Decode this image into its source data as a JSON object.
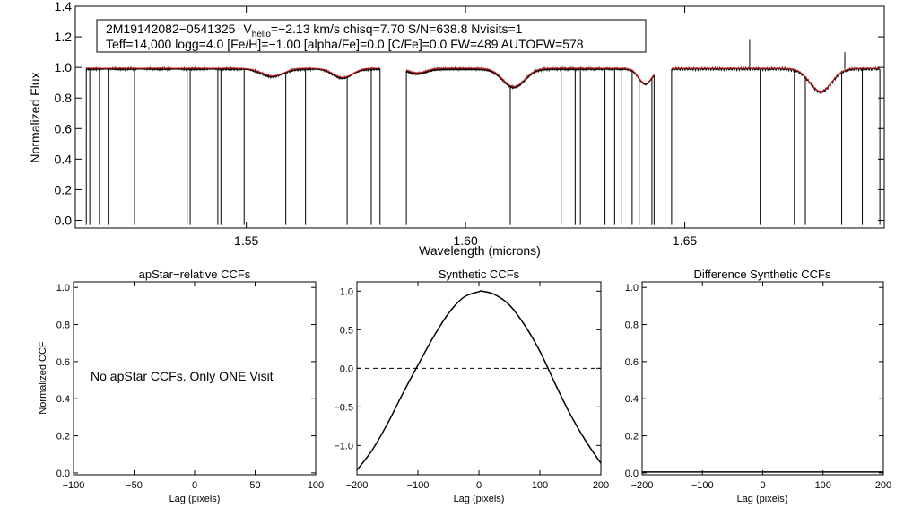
{
  "info_box": {
    "object_id": "2M19142082−0541325",
    "v_label": "V",
    "v_subscript": "helio",
    "line1_rest": "=−2.13 km/s  chisq=7.70  S/N=638.8  Nvisits=1",
    "line2": "Teff=14,000 logg=4.0 [Fe/H]=−1.00 [alpha/Fe]=0.0 [C/Fe]=0.0 FW=489 AUTOFW=578"
  },
  "chart_data": [
    {
      "id": "spectrum",
      "type": "line",
      "title": "",
      "xlabel": "Wavelength (microns)",
      "ylabel": "Normalized Flux",
      "xlim": [
        1.511,
        1.6955
      ],
      "ylim": [
        -0.05,
        1.4
      ],
      "x_ticks": [
        1.55,
        1.6,
        1.65
      ],
      "x_tick_labels": [
        "1.55",
        "1.60",
        "1.65"
      ],
      "y_ticks": [
        0.0,
        0.2,
        0.4,
        0.6,
        0.8,
        1.0,
        1.2,
        1.4
      ],
      "y_tick_labels": [
        "0.0",
        "0.2",
        "0.4",
        "0.6",
        "0.8",
        "1.0",
        "1.2",
        "1.4"
      ],
      "chips": [
        [
          1.5135,
          1.5805
        ],
        [
          1.5865,
          1.643
        ],
        [
          1.647,
          1.6945
        ]
      ],
      "continuum": 0.99,
      "absorption_lines": [
        {
          "center": 1.556,
          "depth": 0.05,
          "width": 0.0025
        },
        {
          "center": 1.572,
          "depth": 0.06,
          "width": 0.0022
        },
        {
          "center": 1.589,
          "depth": 0.03,
          "width": 0.002
        },
        {
          "center": 1.611,
          "depth": 0.12,
          "width": 0.0025
        },
        {
          "center": 1.641,
          "depth": 0.1,
          "width": 0.0015
        },
        {
          "center": 1.681,
          "depth": 0.15,
          "width": 0.0025
        }
      ],
      "bad_pixel_spikes": [
        1.5143,
        1.5165,
        1.5185,
        1.5245,
        1.5365,
        1.5372,
        1.5435,
        1.5442,
        1.5495,
        1.559,
        1.5635,
        1.573,
        1.5785,
        1.6102,
        1.6218,
        1.625,
        1.6262,
        1.6318,
        1.634,
        1.6355,
        1.638,
        1.6396,
        1.6425,
        1.6672,
        1.675,
        1.6775,
        1.6858,
        1.6905
      ],
      "emission_spikes": [
        {
          "x": 1.6648,
          "y": 1.18
        },
        {
          "x": 1.6865,
          "y": 1.1
        }
      ],
      "series": [
        {
          "name": "observed",
          "color": "#000000"
        },
        {
          "name": "model",
          "color": "#e31a1c"
        }
      ]
    },
    {
      "id": "apstar_ccf",
      "type": "line",
      "title": "apStar−relative CCFs",
      "xlabel": "Lag (pixels)",
      "ylabel": "Normalized CCF",
      "xlim": [
        -100,
        100
      ],
      "ylim": [
        -0.01,
        1.03
      ],
      "x_ticks": [
        -100,
        -50,
        0,
        50,
        100
      ],
      "x_tick_labels": [
        "−100",
        "−50",
        "0",
        "50",
        "100"
      ],
      "y_ticks": [
        0.0,
        0.2,
        0.4,
        0.6,
        0.8,
        1.0
      ],
      "y_tick_labels": [
        "0.0",
        "0.2",
        "0.4",
        "0.6",
        "0.8",
        "1.0"
      ],
      "annotation": "No apStar CCFs.  Only ONE Visit",
      "series": []
    },
    {
      "id": "synthetic_ccf",
      "type": "line",
      "title": "Synthetic CCFs",
      "xlabel": "Lag (pixels)",
      "ylabel": "",
      "xlim": [
        -200,
        200
      ],
      "ylim": [
        -1.38,
        1.12
      ],
      "x_ticks": [
        -200,
        -100,
        0,
        100,
        200
      ],
      "x_tick_labels": [
        "−200",
        "−100",
        "0",
        "100",
        "200"
      ],
      "y_ticks": [
        -1.0,
        -0.5,
        0.0,
        0.5,
        1.0
      ],
      "y_tick_labels": [
        "−1.0",
        "−0.5",
        "0.0",
        "0.5",
        "1.0"
      ],
      "zero_line": 0.0,
      "series": [
        {
          "name": "ccf",
          "color": "#000000",
          "x": [
            -200,
            -175,
            -150,
            -125,
            -100,
            -75,
            -50,
            -25,
            0,
            5,
            25,
            50,
            75,
            100,
            125,
            150,
            175,
            200
          ],
          "y": [
            -1.32,
            -1.06,
            -0.72,
            -0.33,
            0.04,
            0.4,
            0.71,
            0.92,
            0.995,
            1.0,
            0.96,
            0.82,
            0.56,
            0.22,
            -0.2,
            -0.6,
            -0.94,
            -1.23
          ]
        }
      ]
    },
    {
      "id": "diff_ccf",
      "type": "line",
      "title": "Difference Synthetic CCFs",
      "xlabel": "Lag (pixels)",
      "ylabel": "",
      "xlim": [
        -200,
        200
      ],
      "ylim": [
        -0.01,
        1.03
      ],
      "x_ticks": [
        -200,
        -100,
        0,
        100,
        200
      ],
      "x_tick_labels": [
        "−200",
        "−100",
        "0",
        "100",
        "200"
      ],
      "y_ticks": [
        0.0,
        0.2,
        0.4,
        0.6,
        0.8,
        1.0
      ],
      "y_tick_labels": [
        "0.0",
        "0.2",
        "0.4",
        "0.6",
        "0.8",
        "1.0"
      ],
      "series": [
        {
          "name": "difference",
          "color": "#000000",
          "x": [
            -200,
            -100,
            0,
            100,
            200
          ],
          "y": [
            0.005,
            0.005,
            0.005,
            0.005,
            0.005
          ]
        }
      ]
    }
  ]
}
